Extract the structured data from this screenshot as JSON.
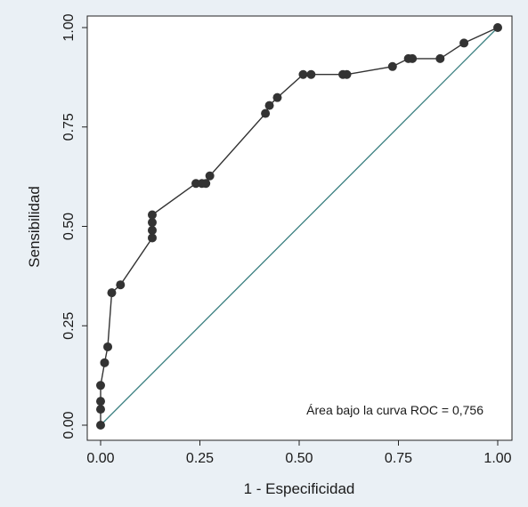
{
  "chart_data": {
    "type": "line",
    "xlabel": "1 - Especificidad",
    "ylabel": "Sensibilidad",
    "xlim": [
      0,
      1
    ],
    "ylim": [
      0,
      1
    ],
    "xticks": [
      "0.00",
      "0.25",
      "0.50",
      "0.75",
      "1.00"
    ],
    "yticks": [
      "0.00",
      "0.25",
      "0.50",
      "0.75",
      "1.00"
    ],
    "annotation": "Área bajo la curva ROC = 0,756",
    "grid": false,
    "colors": {
      "curve": "#333333",
      "reference": "#3a7f80",
      "background": "#eaf0f5",
      "plot_area": "#ffffff"
    },
    "series": [
      {
        "values_x": [
          0.0,
          0.0,
          0.0,
          0.0,
          0.01,
          0.018,
          0.028,
          0.05,
          0.13,
          0.13,
          0.13,
          0.13,
          0.24,
          0.255,
          0.265,
          0.275,
          0.415,
          0.425,
          0.445,
          0.51,
          0.53,
          0.61,
          0.62,
          0.735,
          0.775,
          0.785,
          0.855,
          0.915,
          1.0
        ],
        "values_y": [
          0.0,
          0.04,
          0.06,
          0.1,
          0.157,
          0.197,
          0.333,
          0.353,
          0.471,
          0.49,
          0.51,
          0.529,
          0.608,
          0.608,
          0.608,
          0.627,
          0.784,
          0.804,
          0.824,
          0.882,
          0.882,
          0.882,
          0.882,
          0.902,
          0.922,
          0.922,
          0.922,
          0.961,
          1.0
        ]
      },
      {
        "values_x": [
          0,
          1
        ],
        "values_y": [
          0,
          1
        ]
      }
    ]
  }
}
